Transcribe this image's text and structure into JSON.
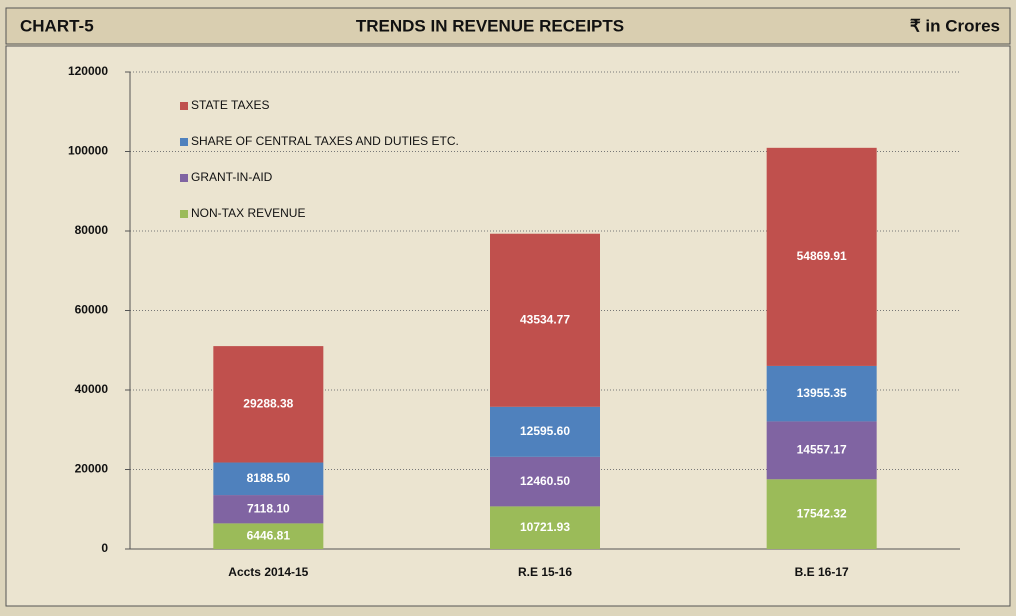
{
  "chart_data": {
    "type": "stacked_bar",
    "label": "CHART-5",
    "title": "TRENDS IN REVENUE RECEIPTS",
    "unit": "₹ in Crores",
    "categories": [
      "Accts 2014-15",
      "R.E 15-16",
      "B.E 16-17"
    ],
    "series": [
      {
        "name": "NON-TAX REVENUE",
        "color": "#9bbb59",
        "values": [
          6446.81,
          10721.93,
          17542.32
        ],
        "value_labels": [
          "6446.81",
          "10721.93",
          "17542.32"
        ]
      },
      {
        "name": "GRANT-IN-AID",
        "color": "#8064a2",
        "values": [
          7118.1,
          12460.5,
          14557.17
        ],
        "value_labels": [
          "7118.10",
          "12460.50",
          "14557.17"
        ]
      },
      {
        "name": "SHARE OF CENTRAL TAXES AND DUTIES ETC.",
        "color": "#4f81bd",
        "values": [
          8188.5,
          12595.6,
          13955.35
        ],
        "value_labels": [
          "8188.50",
          "12595.60",
          "13955.35"
        ]
      },
      {
        "name": "STATE TAXES",
        "color": "#c0504d",
        "values": [
          29288.38,
          43534.77,
          54869.91
        ],
        "value_labels": [
          "29288.38",
          "43534.77",
          "54869.91"
        ]
      }
    ],
    "ylim": [
      0,
      120000
    ],
    "yticks": [
      0,
      20000,
      40000,
      60000,
      80000,
      100000,
      120000
    ],
    "grid": true,
    "legend": "upper left"
  }
}
